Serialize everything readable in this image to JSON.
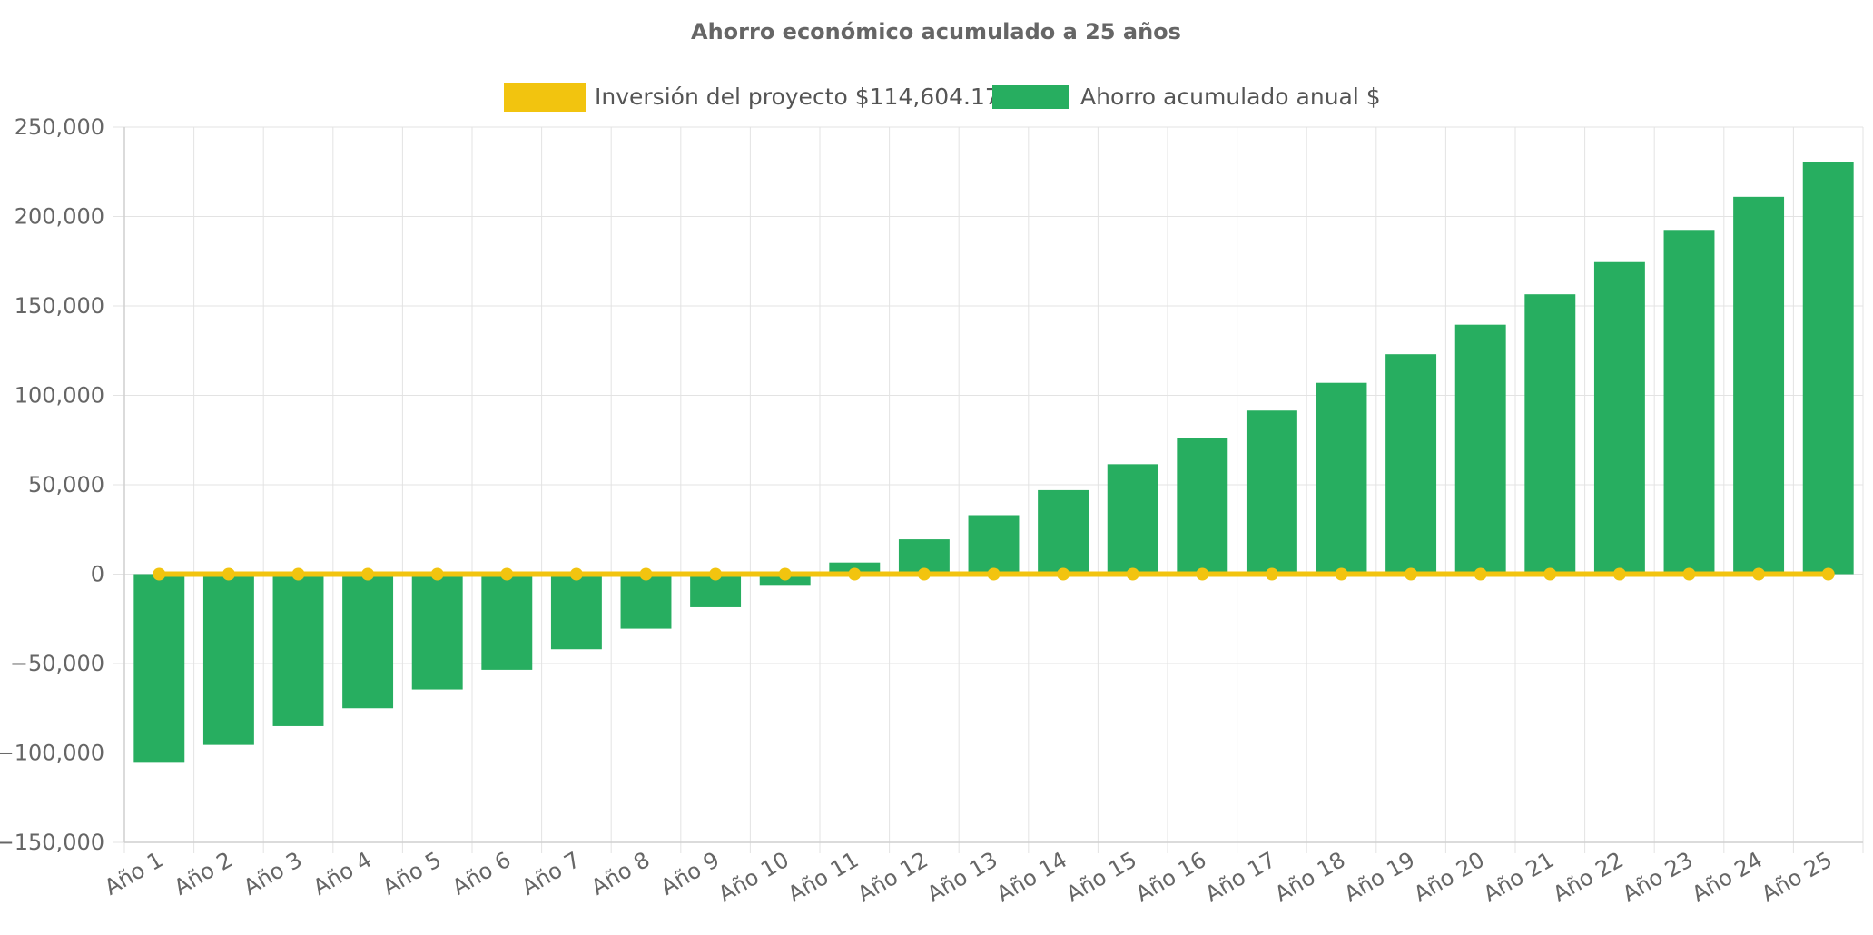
{
  "chart_data": {
    "type": "bar",
    "title": "Ahorro económico acumulado a 25 años",
    "categories": [
      "Año 1",
      "Año 2",
      "Año 3",
      "Año 4",
      "Año 5",
      "Año 6",
      "Año 7",
      "Año 8",
      "Año 9",
      "Año 10",
      "Año 11",
      "Año 12",
      "Año 13",
      "Año 14",
      "Año 15",
      "Año 16",
      "Año 17",
      "Año 18",
      "Año 19",
      "Año 20",
      "Año 21",
      "Año 22",
      "Año 23",
      "Año 24",
      "Año 25"
    ],
    "series": [
      {
        "name": "Inversión del proyecto $114,604.17",
        "type": "line",
        "color": "#f2c40f",
        "values": [
          0,
          0,
          0,
          0,
          0,
          0,
          0,
          0,
          0,
          0,
          0,
          0,
          0,
          0,
          0,
          0,
          0,
          0,
          0,
          0,
          0,
          0,
          0,
          0,
          0
        ]
      },
      {
        "name": "Ahorro acumulado anual $",
        "type": "bar",
        "color": "#27ae60",
        "values": [
          -105000,
          -95500,
          -85000,
          -75000,
          -64500,
          -53500,
          -42000,
          -30500,
          -18500,
          -6000,
          6500,
          19500,
          33000,
          47000,
          61500,
          76000,
          91500,
          107000,
          123000,
          139500,
          156500,
          174500,
          192500,
          211000,
          230500
        ]
      }
    ],
    "yticks": [
      "250,000",
      "200,000",
      "150,000",
      "100,000",
      "50,000",
      "0",
      "−50,000",
      "−100,000",
      "−150,000"
    ],
    "ylim": [
      -150000,
      250000
    ],
    "grid": true,
    "legend_position": "top"
  }
}
